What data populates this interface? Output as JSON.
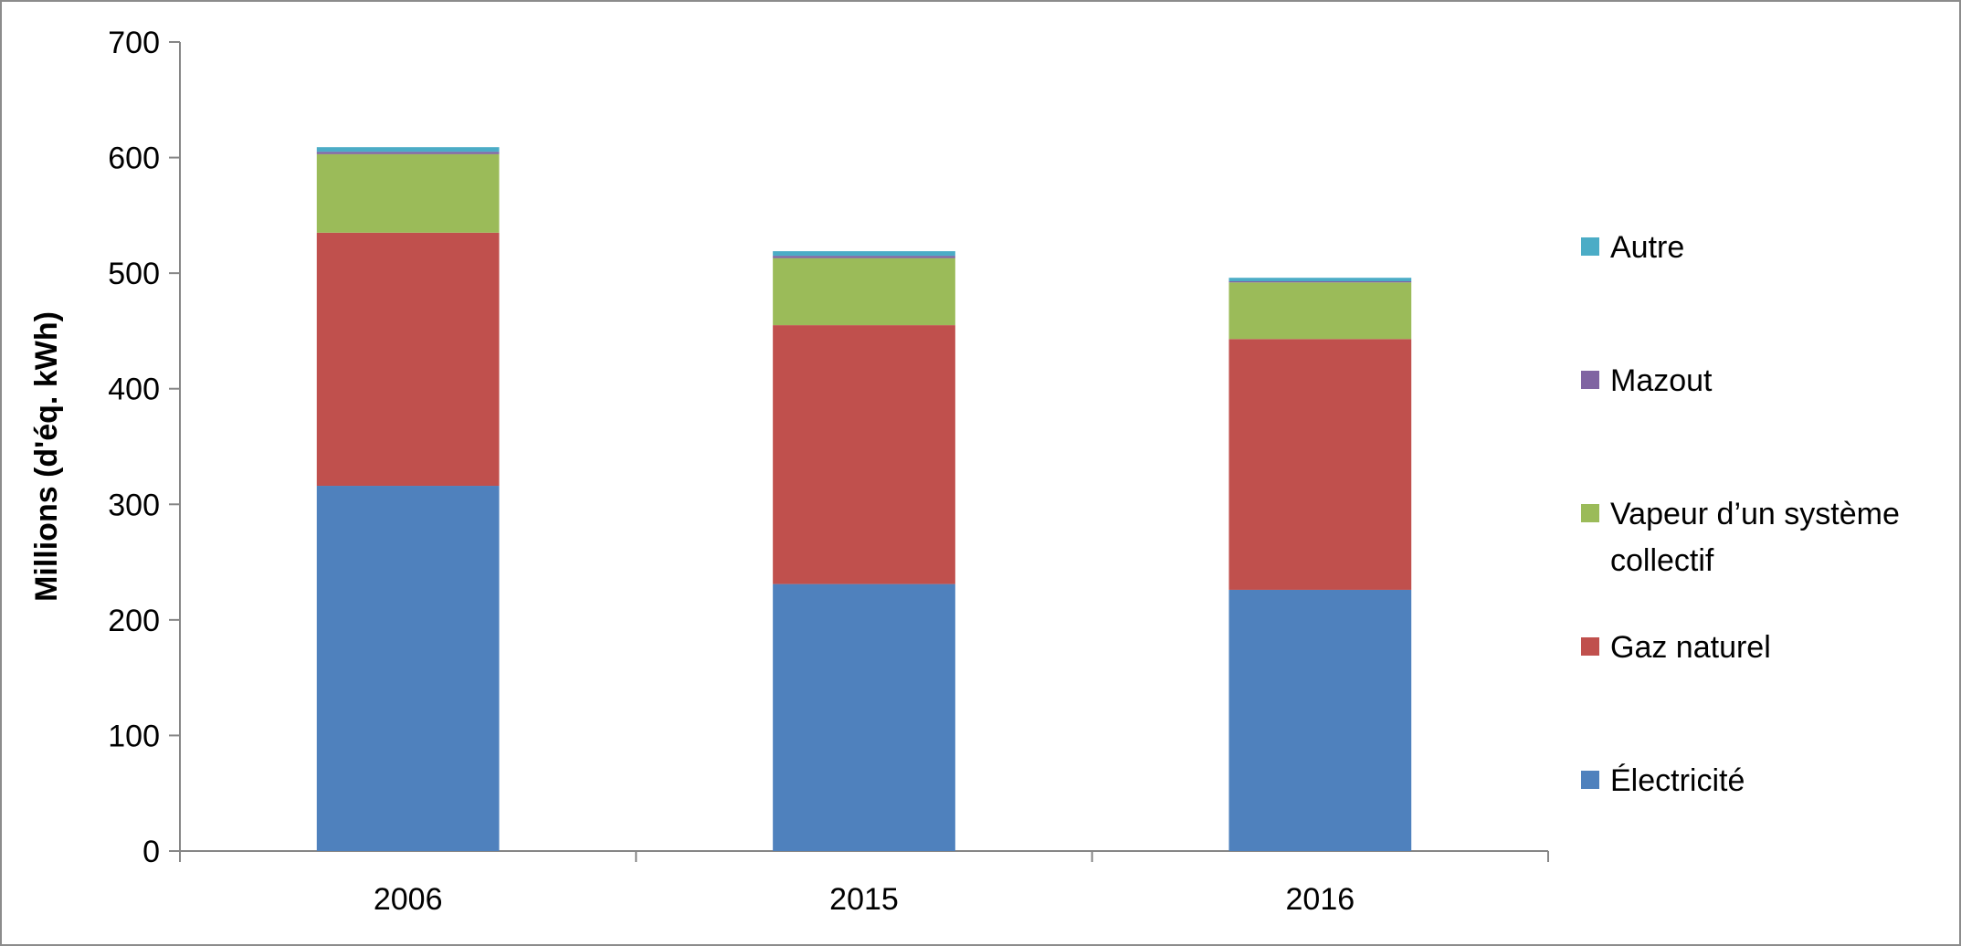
{
  "chart_data": {
    "type": "bar",
    "stacked": true,
    "title": "",
    "xlabel": "",
    "ylabel": "Millions (d'éq. kWh)",
    "ylim": [
      0,
      700
    ],
    "yticks": [
      0,
      100,
      200,
      300,
      400,
      500,
      600,
      700
    ],
    "grid": false,
    "legend": "right",
    "categories": [
      "2006",
      "2015",
      "2016"
    ],
    "series": [
      {
        "name": "Électricité",
        "color": "#4F81BD",
        "values": [
          316,
          231,
          226
        ]
      },
      {
        "name": "Gaz naturel",
        "color": "#C0504D",
        "values": [
          219,
          224,
          217
        ]
      },
      {
        "name": "Vapeur d’un système collectif",
        "legend_lines": [
          "Vapeur d’un système",
          "collectif"
        ],
        "color": "#9BBB59",
        "values": [
          68,
          58,
          49
        ]
      },
      {
        "name": "Mazout",
        "color": "#8064A2",
        "values": [
          2,
          2,
          1
        ]
      },
      {
        "name": "Autre",
        "color": "#4BACC6",
        "values": [
          4,
          4,
          3
        ]
      }
    ]
  }
}
